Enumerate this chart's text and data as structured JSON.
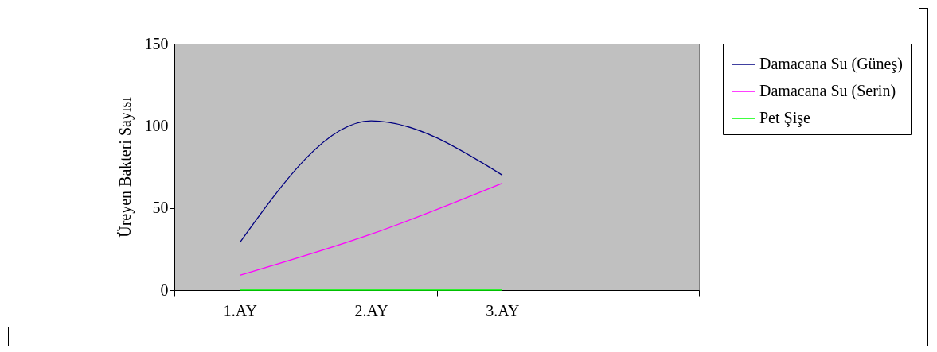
{
  "chart_data": {
    "type": "line",
    "ylabel": "Üreyen Bakteri Sayısı",
    "categories": [
      "1.AY",
      "2.AY",
      "3.AY",
      null
    ],
    "series": [
      {
        "name": "Damacana Su (Güneş)",
        "color": "#000080",
        "values": [
          29,
          103,
          70,
          null
        ]
      },
      {
        "name": "Damacana Su (Serin)",
        "color": "#ff00ff",
        "values": [
          9,
          34,
          65,
          null
        ]
      },
      {
        "name": "Pet Şişe",
        "color": "#00ff00",
        "values": [
          0,
          0,
          0,
          null
        ]
      }
    ],
    "ylim": [
      0,
      150
    ],
    "yticks": [
      0,
      50,
      100,
      150
    ],
    "grid": false,
    "legend": "right",
    "marker": "none",
    "line_style": "solid"
  }
}
